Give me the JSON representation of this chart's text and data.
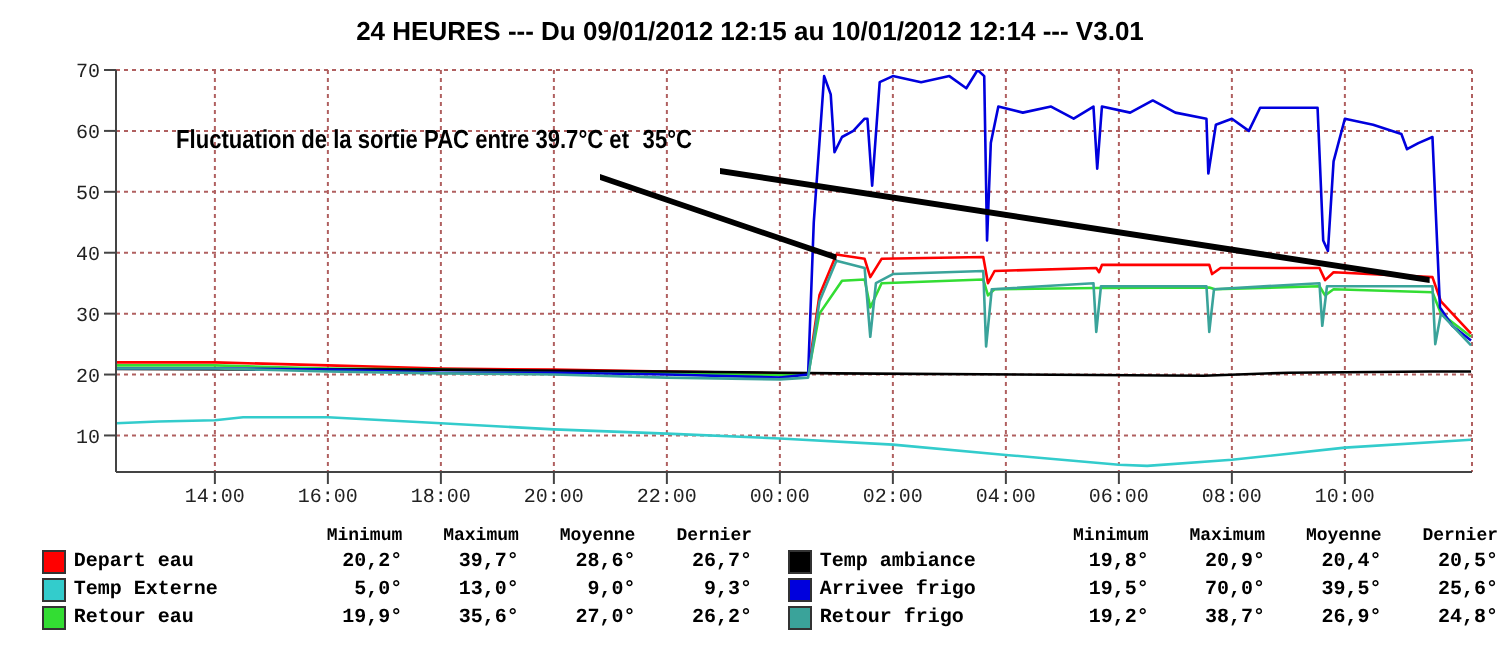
{
  "chart_data": {
    "type": "line",
    "title": "24 HEURES --- Du 09/01/2012 12:15 au 10/01/2012 12:14 --- V3.01",
    "xlim": [
      "2012-01-09T12:15",
      "2012-01-10T12:15"
    ],
    "ylim": [
      4,
      70
    ],
    "xticks": [
      {
        "value": "2012-01-09T14:00",
        "label": "14:00"
      },
      {
        "value": "2012-01-09T16:00",
        "label": "16:00"
      },
      {
        "value": "2012-01-09T18:00",
        "label": "18:00"
      },
      {
        "value": "2012-01-09T20:00",
        "label": "20:00"
      },
      {
        "value": "2012-01-09T22:00",
        "label": "22:00"
      },
      {
        "value": "2012-01-10T00:00",
        "label": "00:00"
      },
      {
        "value": "2012-01-10T02:00",
        "label": "02:00"
      },
      {
        "value": "2012-01-10T04:00",
        "label": "04:00"
      },
      {
        "value": "2012-01-10T06:00",
        "label": "06:00"
      },
      {
        "value": "2012-01-10T08:00",
        "label": "08:00"
      },
      {
        "value": "2012-01-10T10:00",
        "label": "10:00"
      }
    ],
    "yticks": [
      10,
      20,
      30,
      40,
      50,
      60,
      70
    ],
    "grid": true,
    "legend": "bottom",
    "series": [
      {
        "name": "Depart eau",
        "color": "#ff0000",
        "x": [
          "2012-01-09T12:15",
          "2012-01-09T14:00",
          "2012-01-09T16:00",
          "2012-01-09T18:00",
          "2012-01-09T20:00",
          "2012-01-09T22:00",
          "2012-01-10T00:00",
          "2012-01-10T00:30",
          "2012-01-10T00:42",
          "2012-01-10T01:00",
          "2012-01-10T01:30",
          "2012-01-10T01:36",
          "2012-01-10T01:48",
          "2012-01-10T03:36",
          "2012-01-10T03:41",
          "2012-01-10T03:48",
          "2012-01-10T05:36",
          "2012-01-10T05:39",
          "2012-01-10T05:42",
          "2012-01-10T07:36",
          "2012-01-10T07:39",
          "2012-01-10T07:48",
          "2012-01-10T09:33",
          "2012-01-10T09:39",
          "2012-01-10T09:48",
          "2012-01-10T11:33",
          "2012-01-10T11:42",
          "2012-01-10T12:14"
        ],
        "values": [
          22,
          22,
          21.5,
          21,
          20.8,
          20.5,
          20.2,
          20.2,
          33,
          39.7,
          39,
          36,
          39,
          39.3,
          35,
          37,
          37.5,
          36.8,
          38,
          38,
          36.5,
          37.5,
          37.5,
          35.5,
          36.8,
          36,
          32,
          26.7
        ]
      },
      {
        "name": "Temp Externe",
        "color": "#33cccc",
        "x": [
          "2012-01-09T12:15",
          "2012-01-09T13:00",
          "2012-01-09T14:00",
          "2012-01-09T14:30",
          "2012-01-09T16:00",
          "2012-01-09T17:00",
          "2012-01-09T18:00",
          "2012-01-09T20:00",
          "2012-01-09T22:00",
          "2012-01-10T00:00",
          "2012-01-10T02:00",
          "2012-01-10T04:00",
          "2012-01-10T06:00",
          "2012-01-10T06:30",
          "2012-01-10T08:00",
          "2012-01-10T10:00",
          "2012-01-10T12:14"
        ],
        "values": [
          12,
          12.3,
          12.5,
          13,
          13,
          12.5,
          12,
          11,
          10.3,
          9.5,
          8.5,
          6.8,
          5.2,
          5,
          6,
          8,
          9.3
        ]
      },
      {
        "name": "Retour eau",
        "color": "#33dd33",
        "x": [
          "2012-01-09T12:15",
          "2012-01-09T14:00",
          "2012-01-09T16:00",
          "2012-01-09T18:00",
          "2012-01-09T20:00",
          "2012-01-09T22:00",
          "2012-01-10T00:00",
          "2012-01-10T00:30",
          "2012-01-10T00:42",
          "2012-01-10T01:06",
          "2012-01-10T01:30",
          "2012-01-10T01:36",
          "2012-01-10T01:48",
          "2012-01-10T03:36",
          "2012-01-10T03:41",
          "2012-01-10T03:48",
          "2012-01-10T05:36",
          "2012-01-10T05:42",
          "2012-01-10T07:36",
          "2012-01-10T07:42",
          "2012-01-10T09:33",
          "2012-01-10T09:39",
          "2012-01-10T09:48",
          "2012-01-10T11:33",
          "2012-01-10T11:42",
          "2012-01-10T12:14"
        ],
        "values": [
          21.5,
          21.5,
          21,
          20.8,
          20.5,
          20.2,
          19.9,
          20,
          30,
          35.4,
          35.6,
          31,
          35,
          35.6,
          33,
          34,
          34.2,
          34.2,
          34.3,
          34,
          34.5,
          33,
          34,
          33.5,
          30,
          26.2
        ]
      },
      {
        "name": "Temp ambiance",
        "color": "#000000",
        "x": [
          "2012-01-09T12:15",
          "2012-01-09T18:00",
          "2012-01-09T22:00",
          "2012-01-10T00:00",
          "2012-01-10T01:00",
          "2012-01-10T07:30",
          "2012-01-10T09:00",
          "2012-01-10T11:30",
          "2012-01-10T12:14"
        ],
        "values": [
          20.9,
          20.8,
          20.5,
          20.3,
          20.2,
          19.8,
          20.3,
          20.5,
          20.5
        ]
      },
      {
        "name": "Arrivee frigo",
        "color": "#0000dd",
        "x": [
          "2012-01-09T12:15",
          "2012-01-09T14:00",
          "2012-01-09T16:00",
          "2012-01-09T18:00",
          "2012-01-09T20:00",
          "2012-01-09T22:00",
          "2012-01-10T00:00",
          "2012-01-10T00:30",
          "2012-01-10T00:36",
          "2012-01-10T00:47",
          "2012-01-10T00:54",
          "2012-01-10T00:58",
          "2012-01-10T01:06",
          "2012-01-10T01:18",
          "2012-01-10T01:30",
          "2012-01-10T01:33",
          "2012-01-10T01:38",
          "2012-01-10T01:46",
          "2012-01-10T02:00",
          "2012-01-10T02:30",
          "2012-01-10T03:00",
          "2012-01-10T03:18",
          "2012-01-10T03:30",
          "2012-01-10T03:37",
          "2012-01-10T03:40",
          "2012-01-10T03:44",
          "2012-01-10T03:52",
          "2012-01-10T04:18",
          "2012-01-10T04:48",
          "2012-01-10T05:12",
          "2012-01-10T05:33",
          "2012-01-10T05:37",
          "2012-01-10T05:42",
          "2012-01-10T06:12",
          "2012-01-10T06:36",
          "2012-01-10T07:00",
          "2012-01-10T07:33",
          "2012-01-10T07:35",
          "2012-01-10T07:43",
          "2012-01-10T08:00",
          "2012-01-10T08:18",
          "2012-01-10T08:30",
          "2012-01-10T09:31",
          "2012-01-10T09:37",
          "2012-01-10T09:42",
          "2012-01-10T09:48",
          "2012-01-10T10:00",
          "2012-01-10T10:30",
          "2012-01-10T11:00",
          "2012-01-10T11:06",
          "2012-01-10T11:18",
          "2012-01-10T11:33",
          "2012-01-10T11:41",
          "2012-01-10T11:54",
          "2012-01-10T12:14"
        ],
        "values": [
          21,
          21,
          20.8,
          20.3,
          20.3,
          20,
          19.5,
          20,
          45,
          69,
          66,
          56.5,
          59,
          60,
          62,
          62,
          51,
          68,
          69,
          68,
          69,
          67,
          70,
          69,
          42,
          58,
          64,
          63,
          64,
          62,
          64,
          53.8,
          64,
          63,
          65,
          63,
          62,
          53,
          61,
          62,
          60,
          63.8,
          63.8,
          42,
          40.3,
          55,
          62,
          61,
          59.5,
          57,
          58,
          59,
          31,
          28,
          25.6
        ]
      },
      {
        "name": "Retour frigo",
        "color": "#3aa39a",
        "x": [
          "2012-01-09T12:15",
          "2012-01-09T14:00",
          "2012-01-09T16:00",
          "2012-01-09T18:00",
          "2012-01-09T20:00",
          "2012-01-09T22:00",
          "2012-01-10T00:00",
          "2012-01-10T00:30",
          "2012-01-10T00:42",
          "2012-01-10T01:00",
          "2012-01-10T01:30",
          "2012-01-10T01:36",
          "2012-01-10T01:42",
          "2012-01-10T02:00",
          "2012-01-10T03:36",
          "2012-01-10T03:39",
          "2012-01-10T03:45",
          "2012-01-10T05:33",
          "2012-01-10T05:36",
          "2012-01-10T05:41",
          "2012-01-10T07:33",
          "2012-01-10T07:36",
          "2012-01-10T07:41",
          "2012-01-10T09:33",
          "2012-01-10T09:36",
          "2012-01-10T09:41",
          "2012-01-10T11:33",
          "2012-01-10T11:36",
          "2012-01-10T11:42",
          "2012-01-10T12:14"
        ],
        "values": [
          21,
          21,
          20.5,
          20.2,
          20,
          19.5,
          19.2,
          19.5,
          32,
          38.7,
          37.5,
          26.2,
          35,
          36.5,
          37,
          24.6,
          34,
          35,
          27,
          34.5,
          34.5,
          27,
          34,
          35,
          28,
          34.5,
          34.5,
          25,
          30,
          24.8
        ]
      }
    ],
    "annotations": [
      {
        "text": "Fluctuation de la sortie PAC entre 39.7°C et",
        "x": "2012-01-10T01:00",
        "y": 39.7
      },
      {
        "text": "35°C",
        "x": "2012-01-10T11:30",
        "y": 36
      },
      "Minimum",
      "Maximum",
      "Moyenne",
      "Dernier",
      "20,2°",
      "39,7°",
      "28,6°",
      "26,7°",
      "5,0°",
      "13,0°",
      "9,0°",
      "9,3°",
      "19,9°",
      "35,6°",
      "27,0°",
      "26,2°",
      "19,8°",
      "20,9°",
      "20,4°",
      "20,5°",
      "19,5°",
      "70,0°",
      "39,5°",
      "25,6°",
      "19,2°",
      "38,7°",
      "26,9°",
      "24,8°"
    ]
  }
}
